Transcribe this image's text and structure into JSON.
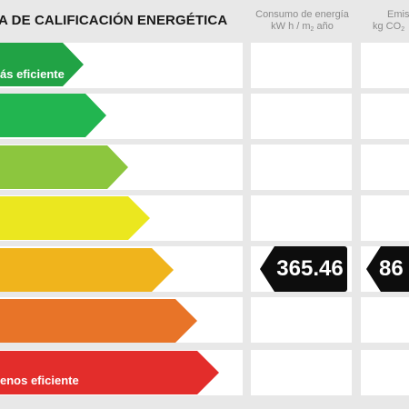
{
  "header": {
    "title": "A DE CALIFICACIÓN ENERGÉTICA",
    "col_consumo_line1": "Consumo de energía",
    "col_consumo_line2_a": "kW h / m",
    "col_consumo_line2_sub": "2",
    "col_consumo_line2_b": " año",
    "col_emisiones_line1": "Emis",
    "col_emisiones_line2_a": "kg CO",
    "col_emisiones_line2_sub": "2"
  },
  "scale": {
    "top_label": "ás eficiente",
    "bottom_label": "enos eficiente",
    "colors": [
      "#21a345",
      "#22b550",
      "#8cc63e",
      "#ebe71f",
      "#f0b41c",
      "#e87428",
      "#e32d2b"
    ]
  },
  "rating": {
    "consumo_value": "365.46",
    "emisiones_value": "86"
  }
}
